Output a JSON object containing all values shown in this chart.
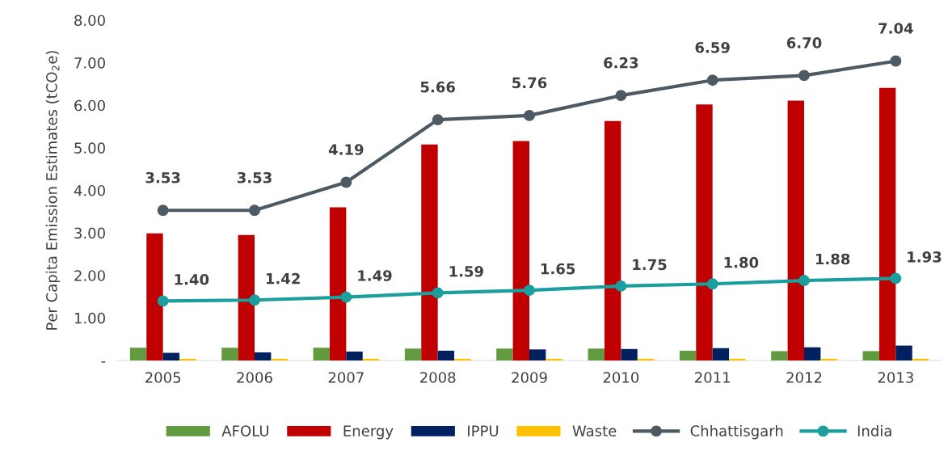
{
  "chart_data": {
    "type": "bar",
    "ylabel": "Per Capita Emission Estimates (tCO$_{2}$e)",
    "categories": [
      "2005",
      "2006",
      "2007",
      "2008",
      "2009",
      "2010",
      "2011",
      "2012",
      "2013"
    ],
    "ylim": [
      0,
      8
    ],
    "yticks": [
      {
        "value": 0,
        "label": "-"
      },
      {
        "value": 1,
        "label": "1.00"
      },
      {
        "value": 2,
        "label": "2.00"
      },
      {
        "value": 3,
        "label": "3.00"
      },
      {
        "value": 4,
        "label": "4.00"
      },
      {
        "value": 5,
        "label": "5.00"
      },
      {
        "value": 6,
        "label": "6.00"
      },
      {
        "value": 7,
        "label": "7.00"
      },
      {
        "value": 8,
        "label": "8.00"
      }
    ],
    "grid": false,
    "legend": "bottom",
    "series": [
      {
        "name": "AFOLU",
        "color": "#629a3f",
        "values": [
          0.3,
          0.3,
          0.3,
          0.28,
          0.28,
          0.28,
          0.23,
          0.22,
          0.22
        ]
      },
      {
        "name": "Energy",
        "color": "#c00000",
        "values": [
          2.99,
          2.95,
          3.6,
          5.08,
          5.16,
          5.63,
          6.02,
          6.11,
          6.41
        ]
      },
      {
        "name": "IPPU",
        "color": "#002060",
        "values": [
          0.18,
          0.19,
          0.21,
          0.23,
          0.26,
          0.27,
          0.29,
          0.31,
          0.35
        ]
      },
      {
        "name": "Waste",
        "color": "#ffc000",
        "values": [
          0.04,
          0.04,
          0.04,
          0.04,
          0.04,
          0.04,
          0.04,
          0.04,
          0.04
        ]
      },
      {
        "name": "Chhattisgarh",
        "type": "line",
        "marker": "circle",
        "color": "#4d5a63",
        "values": [
          3.53,
          3.53,
          4.19,
          5.66,
          5.76,
          6.23,
          6.59,
          6.7,
          7.04
        ],
        "value_labels": [
          "3.53",
          "3.53",
          "4.19",
          "5.66",
          "5.76",
          "6.23",
          "6.59",
          "6.70",
          "7.04"
        ]
      },
      {
        "name": "India",
        "type": "line",
        "marker": "circle",
        "color": "#1a9e9e",
        "values": [
          1.4,
          1.42,
          1.49,
          1.59,
          1.65,
          1.75,
          1.8,
          1.88,
          1.93
        ],
        "value_labels": [
          "1.40",
          "1.42",
          "1.49",
          "1.59",
          "1.65",
          "1.75",
          "1.80",
          "1.88",
          "1.93"
        ]
      }
    ]
  }
}
